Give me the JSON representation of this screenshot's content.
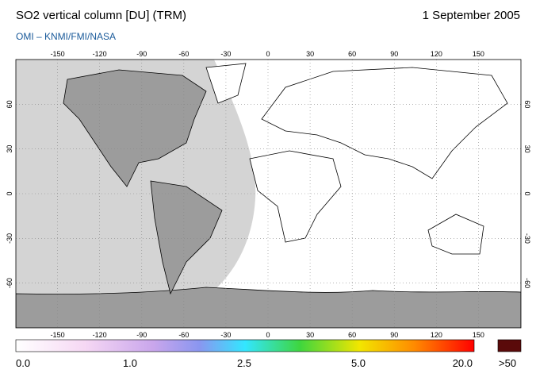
{
  "header": {
    "title": "SO2 vertical column [DU] (TRM)",
    "date": "1 September 2005",
    "subtitle": "OMI  –  KNMI/FMI/NASA"
  },
  "map": {
    "lon_ticks": [
      -150,
      -120,
      -90,
      -60,
      -30,
      0,
      30,
      60,
      90,
      120,
      150
    ],
    "lat_ticks": [
      60,
      30,
      0,
      -30,
      -60
    ]
  },
  "colorbar": {
    "labels": [
      "0.0",
      "1.0",
      "2.5",
      "5.0",
      "20.0"
    ],
    "overflow_label": ">50"
  }
}
